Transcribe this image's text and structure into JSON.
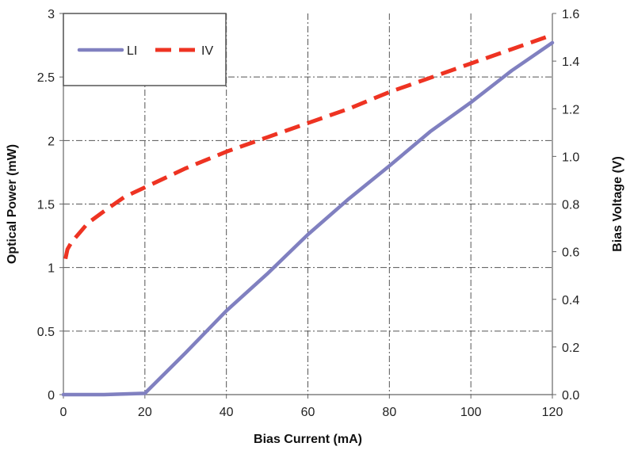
{
  "chart_data": {
    "type": "line",
    "title": "",
    "xlabel": "Bias Current (mA)",
    "ylabel": "Optical Power (mW)",
    "y2label": "Bias Voltage (V)",
    "xlim": [
      0,
      120
    ],
    "ylim": [
      0,
      3
    ],
    "y2lim": [
      0,
      1.6
    ],
    "x_ticks": [
      0,
      20,
      40,
      60,
      80,
      100,
      120
    ],
    "y_ticks": [
      0,
      0.5,
      1,
      1.5,
      2,
      2.5,
      3
    ],
    "y_tick_labels": [
      "0",
      "0.5",
      "1",
      "1.5",
      "2",
      "2.5",
      "3"
    ],
    "y2_ticks": [
      0,
      0.2,
      0.4,
      0.6,
      0.8,
      1.0,
      1.2,
      1.4,
      1.6
    ],
    "y2_tick_labels": [
      "0.0",
      "0.2",
      "0.4",
      "0.6",
      "0.8",
      "1.0",
      "1.2",
      "1.4",
      "1.6"
    ],
    "grid": true,
    "legend_position": "top-left",
    "series": [
      {
        "name": "LI",
        "axis": "left",
        "style": "solid",
        "color": "#8080c0",
        "x": [
          0,
          10,
          20,
          30,
          40,
          50,
          60,
          70,
          80,
          90,
          100,
          110,
          120
        ],
        "y": [
          0.0,
          0.0,
          0.01,
          0.33,
          0.66,
          0.95,
          1.26,
          1.54,
          1.8,
          2.07,
          2.3,
          2.55,
          2.77
        ]
      },
      {
        "name": "IV",
        "axis": "right",
        "style": "dashed",
        "color": "#ee3322",
        "x": [
          0.5,
          1,
          2,
          4,
          6,
          10,
          15,
          20,
          30,
          40,
          50,
          60,
          70,
          80,
          90,
          100,
          110,
          120
        ],
        "y": [
          0.57,
          0.61,
          0.64,
          0.68,
          0.72,
          0.77,
          0.83,
          0.87,
          0.95,
          1.02,
          1.08,
          1.14,
          1.2,
          1.27,
          1.33,
          1.39,
          1.45,
          1.51
        ]
      }
    ]
  }
}
